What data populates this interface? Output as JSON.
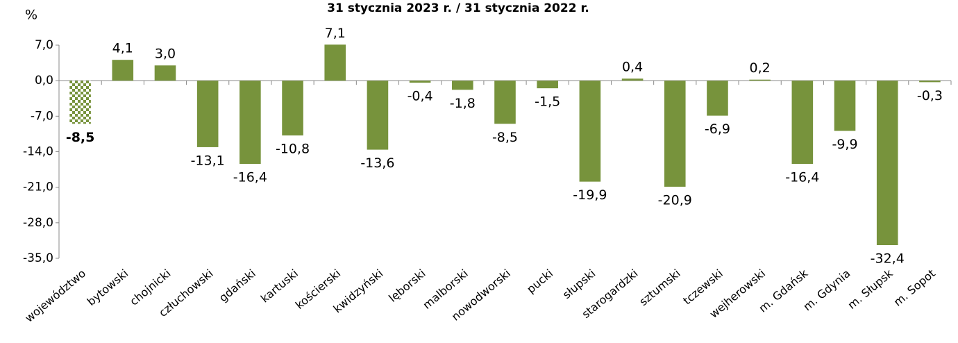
{
  "chart_data": {
    "type": "bar",
    "title": "31 stycznia 2023 r. / 31 stycznia 2022 r.",
    "y_unit": "%",
    "categories": [
      "województwo",
      "bytowski",
      "chojnicki",
      "człuchowski",
      "gdański",
      "kartuski",
      "kościerski",
      "kwidzyński",
      "lęborski",
      "malborski",
      "nowodworski",
      "pucki",
      "słupski",
      "starogardzki",
      "sztumski",
      "tczewski",
      "wejherowski",
      "m. Gdańsk",
      "m. Gdynia",
      "m. Słupsk",
      "m. Sopot"
    ],
    "values": [
      -8.5,
      4.1,
      3.0,
      -13.1,
      -16.4,
      -10.8,
      7.1,
      -13.6,
      -0.4,
      -1.8,
      -8.5,
      -1.5,
      -19.9,
      0.4,
      -20.9,
      -6.9,
      0.2,
      -16.4,
      -9.9,
      -32.4,
      -0.3
    ],
    "value_labels": [
      "-8,5",
      "4,1",
      "3,0",
      "-13,1",
      "-16,4",
      "-10,8",
      "7,1",
      "-13,6",
      "-0,4",
      "-1,8",
      "-8,5",
      "-1,5",
      "-19,9",
      "0,4",
      "-20,9",
      "-6,9",
      "0,2",
      "-16,4",
      "-9,9",
      "-32,4",
      "-0,3"
    ],
    "color": "#77933c",
    "checkered_bars": [
      0
    ],
    "ylim": [
      -35,
      7
    ],
    "yticks": [
      {
        "value": -35,
        "label": "-35,0"
      },
      {
        "value": -28,
        "label": "-28,0"
      },
      {
        "value": -21,
        "label": "-21,0"
      },
      {
        "value": -14,
        "label": "-14,0"
      },
      {
        "value": -7,
        "label": "-7,0"
      },
      {
        "value": 0,
        "label": "0,0"
      },
      {
        "value": 7,
        "label": "7,0"
      }
    ],
    "grid": false
  }
}
